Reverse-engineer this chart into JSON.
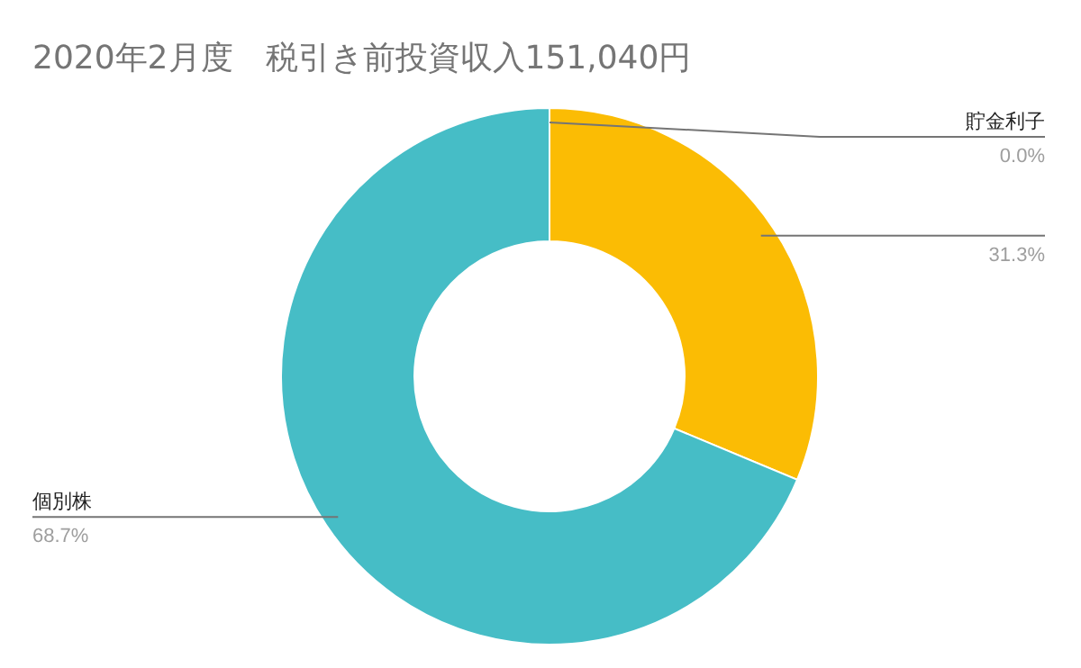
{
  "chart_data": {
    "type": "donut",
    "title": "2020年2月度　税引き前投資収入151,040円",
    "categories": [
      "貯金利子",
      null,
      "個別株"
    ],
    "values": [
      0.0,
      31.3,
      68.7
    ],
    "value_labels": [
      "0.0%",
      "31.3%",
      "68.7%"
    ],
    "colors": [
      "#9e9e9e",
      "#fbbc04",
      "#46bdc6"
    ]
  }
}
